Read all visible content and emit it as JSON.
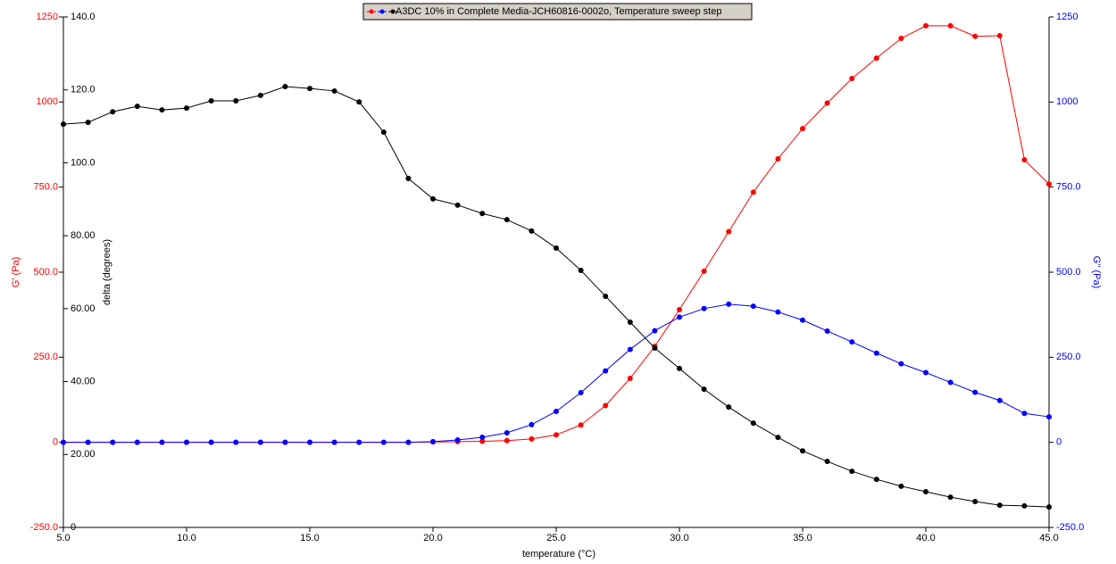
{
  "chart_data": {
    "type": "line",
    "legend_text": "A3DC 10% in Complete Media-JCH60816-0002o, Temperature sweep step",
    "x_label": "temperature (°C)",
    "y_label": "G' (Pa)",
    "y2_label": "G'' (Pa)",
    "y3_label": "delta (degrees)",
    "x": [
      5,
      6,
      7,
      8,
      9,
      10,
      11,
      12,
      13,
      14,
      15,
      16,
      17,
      18,
      19,
      20,
      21,
      22,
      23,
      24,
      25,
      26,
      27,
      28,
      29,
      30,
      31,
      32,
      33,
      34,
      35,
      36,
      37,
      38,
      39,
      40,
      41,
      42,
      43,
      44,
      45
    ],
    "xlim": [
      5,
      45
    ],
    "xticks": [
      {
        "value": 5,
        "label": "5.0"
      },
      {
        "value": 10,
        "label": "10.0"
      },
      {
        "value": 15,
        "label": "15.0"
      },
      {
        "value": 20,
        "label": "20.0"
      },
      {
        "value": 25,
        "label": "25.0"
      },
      {
        "value": 30,
        "label": "30.0"
      },
      {
        "value": 35,
        "label": "35.0"
      },
      {
        "value": 40,
        "label": "40.0"
      },
      {
        "value": 45,
        "label": "45.0"
      }
    ],
    "ylim": [
      -250,
      1250
    ],
    "yticks": [
      {
        "value": -250,
        "label": "-250.0"
      },
      0,
      {
        "value": 250,
        "label": "250.0"
      },
      {
        "value": 500,
        "label": "500.0"
      },
      {
        "value": 750,
        "label": "750.0"
      },
      1000,
      1250
    ],
    "y2lim": [
      -250,
      1250
    ],
    "y2ticks": [
      {
        "value": -250,
        "label": "-250.0"
      },
      0,
      {
        "value": 250,
        "label": "250.0"
      },
      {
        "value": 500,
        "label": "500.0"
      },
      {
        "value": 750,
        "label": "750.0"
      },
      1000,
      1250
    ],
    "y3lim": [
      0,
      140
    ],
    "y3ticks": [
      0,
      {
        "value": 20,
        "label": "20.00"
      },
      {
        "value": 40,
        "label": "40.00"
      },
      {
        "value": 60,
        "label": "60.00"
      },
      {
        "value": 80,
        "label": "80.00"
      },
      {
        "value": 100,
        "label": "100.0"
      },
      {
        "value": 120,
        "label": "120.0"
      },
      {
        "value": 140,
        "label": "140.0"
      }
    ],
    "series": [
      {
        "color": "#ff0000",
        "axis": "y",
        "values": [
          0,
          0,
          0,
          0,
          0,
          0,
          0,
          0,
          0,
          0,
          0,
          0,
          0,
          0,
          0,
          1,
          2,
          3,
          5,
          10,
          22,
          51,
          108,
          188,
          282,
          390,
          503,
          619,
          735,
          833,
          922,
          997,
          1069,
          1129,
          1187,
          1224,
          1224,
          1193,
          1195,
          830,
          759
        ]
      },
      {
        "color": "#0000ff",
        "axis": "y2",
        "values": [
          0,
          0,
          0,
          0,
          0,
          0,
          0,
          0,
          0,
          0,
          0,
          0,
          0,
          0,
          0,
          2,
          7,
          15,
          28,
          52,
          91,
          146,
          210,
          273,
          328,
          368,
          393,
          406,
          400,
          383,
          359,
          327,
          295,
          262,
          231,
          205,
          176,
          147,
          123,
          85,
          75
        ]
      },
      {
        "color": "#000000",
        "axis": "y3",
        "values": [
          110.6,
          111.1,
          114.0,
          115.5,
          114.5,
          115.0,
          117.0,
          117.0,
          118.5,
          120.9,
          120.4,
          119.7,
          116.7,
          108.4,
          95.7,
          90.1,
          88.4,
          86.1,
          84.4,
          81.3,
          76.6,
          70.5,
          63.4,
          56.3,
          49.2,
          43.6,
          37.9,
          33.0,
          28.6,
          24.7,
          21.0,
          18.1,
          15.4,
          13.2,
          11.3,
          9.8,
          8.3,
          7.1,
          6.1,
          5.9,
          5.6
        ]
      }
    ]
  }
}
